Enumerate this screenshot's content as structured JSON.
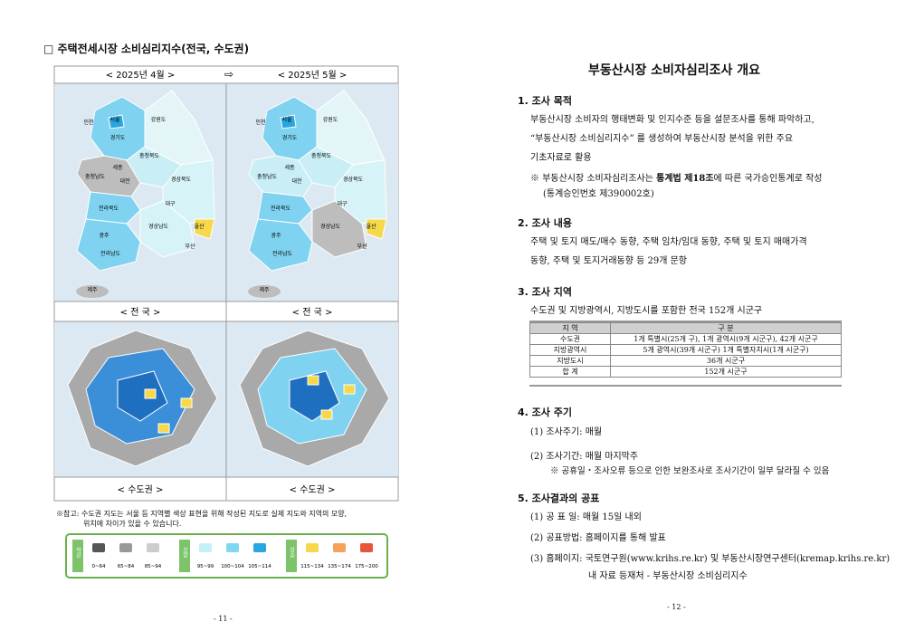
{
  "left_page": {
    "heading": "□ 주택전세시장 소비심리지수(전국, 수도권)",
    "months": [
      "< 2025년 4월 >",
      "< 2025년 5월 >"
    ],
    "arrow": "⇨",
    "region_labels": [
      "인천",
      "서울",
      "강원도",
      "경기도",
      "충청북도",
      "세종",
      "충청남도",
      "대전",
      "경상북도",
      "대구",
      "전라북도",
      "울산",
      "광주",
      "경상남도",
      "부산",
      "전라남도",
      "제주"
    ],
    "captions": [
      "< 전 국 >",
      "< 전 국 >",
      "< 수도권 >",
      "< 수도권 >"
    ],
    "note": [
      "※참고: 수도권 지도는 서울 등 지역별 색상 표현을 위해 작성된 지도로 실제 지도와 지역의 모양,",
      "위치에 차이가 있을 수 있습니다."
    ],
    "legend": [
      {
        "group": "하강",
        "ranges": [
          "0~64",
          "65~84",
          "85~94"
        ]
      },
      {
        "group": "보합",
        "ranges": [
          "95~99",
          "100~104",
          "105~114"
        ]
      },
      {
        "group": "상승",
        "ranges": [
          "115~134",
          "135~174",
          "175~200"
        ]
      }
    ],
    "page_number": "- 11 -"
  },
  "right_page": {
    "title": "부동산시장 소비자심리조사 개요",
    "sections": [
      {
        "heading": "1. 조사 목적",
        "lines": [
          "부동산시장 소비자의 행태변화 및 인지수준 등을 설문조사를 통해 파악하고,",
          "“부동산시장 소비심리지수” 를 생성하여 부동산시장 분석을 위한 주요",
          "기초자료로 활용"
        ],
        "note": [
          "※ 부동산시장 소비자심리조사는 ",
          "통계법 제18조",
          "에 따른 국가승인통계로 작성"
        ],
        "note_line2": "(통계승인번호 제390002호)"
      },
      {
        "heading": "2. 조사 내용",
        "lines": [
          "주택 및 토지 매도/매수 동향, 주택 임차/임대 동향, 주택 및 토지 매매가격",
          "동향, 주택 및 토지거래동향 등 29개 문항"
        ]
      },
      {
        "heading": "3. 조사 지역",
        "lines": [
          "수도권 및 지방광역시, 지방도시를 포함한 전국 152개 시군구"
        ],
        "table": {
          "header": [
            "지 역",
            "구 분"
          ],
          "rows": [
            [
              "수도권",
              "1개 특별시(25개 구), 1개 광역시(9개 시군구), 42개 시군구"
            ],
            [
              "지방광역시",
              "5개 광역시(39개 시군구) 1개 특별자치시(1개 시군구)"
            ],
            [
              "지방도시",
              "36개 시군구"
            ],
            [
              "합 계",
              "152개 시군구"
            ]
          ]
        }
      },
      {
        "heading": "4. 조사 주기",
        "lines": [
          "(1) 조사주기: 매월",
          "(2) 조사기간: 매월 마지막주"
        ],
        "note_line2": "※ 공휴일・조사오류 등으로 인한 보완조사로 조사기간이 일부 달라질 수 있음"
      },
      {
        "heading": "5. 조사결과의 공표",
        "lines": [
          "(1) 공 표 일: 매월 15일 내외",
          "(2) 공표방법: 홈페이지를 통해 발표",
          "(3) 홈페이지: 국토연구원(www.krihs.re.kr) 및 부동산시장연구센터(kremap.krihs.re.kr)",
          "내 자료 등재처 - 부동산시장 소비심리지수"
        ]
      }
    ],
    "page_number": "- 12 -"
  }
}
